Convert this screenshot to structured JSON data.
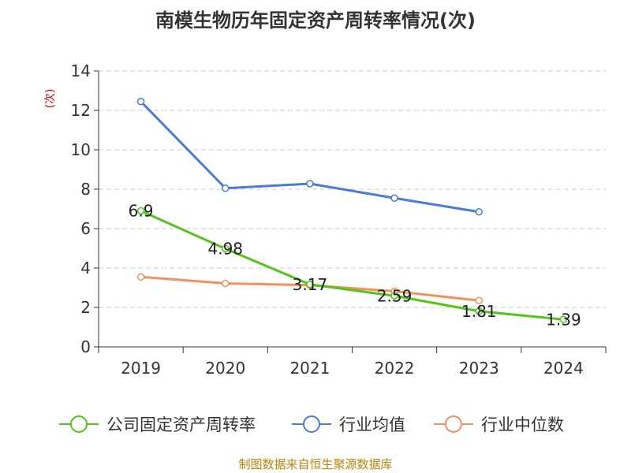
{
  "colors": {
    "company": "#52c41a",
    "industry_avg": "#4a7bd8",
    "industry_median": "#f39060",
    "ylabel": "#cc0000",
    "source": "#b8860b"
  },
  "chart_data": {
    "type": "line",
    "title": "南模生物历年固定资产周转率情况(次)",
    "xlabel": "",
    "ylabel": "(次)",
    "categories": [
      "2019",
      "2020",
      "2021",
      "2022",
      "2023",
      "2024"
    ],
    "ylim": [
      0,
      14
    ],
    "yticks": [
      0,
      2,
      4,
      6,
      8,
      10,
      12,
      14
    ],
    "grid": true,
    "legend_position": "bottom",
    "series": [
      {
        "name": "公司固定资产周转率",
        "color_key": "company",
        "values": [
          6.9,
          4.98,
          3.17,
          2.59,
          1.81,
          1.39
        ],
        "labels": [
          "6.9",
          "4.98",
          "3.17",
          "2.59",
          "1.81",
          "1.39"
        ]
      },
      {
        "name": "行业均值",
        "color_key": "industry_avg",
        "values": [
          12.45,
          8.05,
          8.28,
          7.55,
          6.85,
          null
        ]
      },
      {
        "name": "行业中位数",
        "color_key": "industry_median",
        "values": [
          3.55,
          3.22,
          3.13,
          2.82,
          2.35,
          null
        ]
      }
    ]
  },
  "source": "制图数据来自恒生聚源数据库"
}
